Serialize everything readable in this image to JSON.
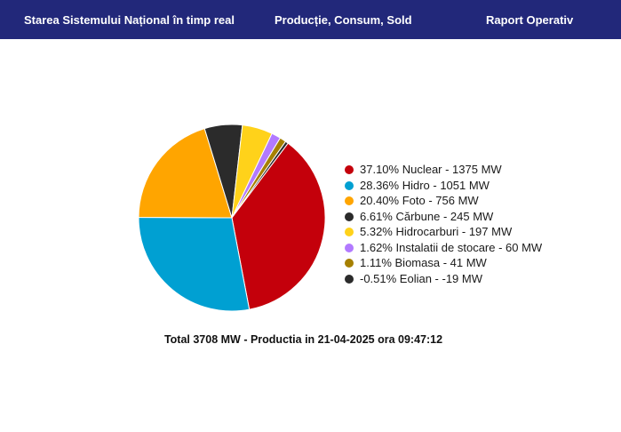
{
  "header": {
    "nav": [
      {
        "label": "Starea Sistemului Național în timp real"
      },
      {
        "label": "Producție, Consum, Sold"
      },
      {
        "label": "Raport Operativ"
      }
    ],
    "background": "#22287a"
  },
  "chart_data": {
    "type": "pie",
    "title": "",
    "slices": [
      {
        "label": "37.10% Nuclear - 1375 MW",
        "name": "Nuclear",
        "percent": 37.1,
        "value": 1375,
        "color": "#c4000b"
      },
      {
        "label": "28.36% Hidro - 1051 MW",
        "name": "Hidro",
        "percent": 28.36,
        "value": 1051,
        "color": "#00a0d2"
      },
      {
        "label": "20.40% Foto - 756 MW",
        "name": "Foto",
        "percent": 20.4,
        "value": 756,
        "color": "#ffa500"
      },
      {
        "label": "6.61% Cărbune - 245 MW",
        "name": "Cărbune",
        "percent": 6.61,
        "value": 245,
        "color": "#2b2b2b"
      },
      {
        "label": "5.32% Hidrocarburi - 197 MW",
        "name": "Hidrocarburi",
        "percent": 5.32,
        "value": 197,
        "color": "#ffd21a"
      },
      {
        "label": "1.62% Instalatii de stocare - 60 MW",
        "name": "Instalatii de stocare",
        "percent": 1.62,
        "value": 60,
        "color": "#b27aff"
      },
      {
        "label": "1.11% Biomasa - 41 MW",
        "name": "Biomasa",
        "percent": 1.11,
        "value": 41,
        "color": "#a68000"
      },
      {
        "label": "-0.51% Eolian - -19 MW",
        "name": "Eolian",
        "percent": -0.51,
        "value": -19,
        "color": "#2b2b2b"
      }
    ],
    "legend_position": "right",
    "total_text": "Total 3708 MW - Productia in 21-04-2025 ora 09:47:12"
  }
}
